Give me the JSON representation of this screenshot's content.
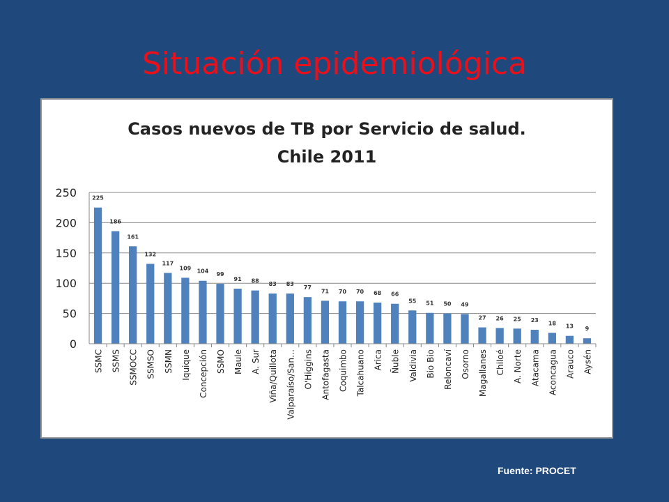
{
  "slide": {
    "title": "Situación epidemiológica",
    "source": "Fuente: PROCET",
    "background_color": "#1f497d",
    "title_color": "#e8101a"
  },
  "chart_data": {
    "type": "bar",
    "title": "Casos nuevos de TB por Servicio de salud.",
    "subtitle": "Chile 2011",
    "categories": [
      "SSMC",
      "SSMS",
      "SSMOCC",
      "SSMSO",
      "SSMN",
      "Iquique",
      "Concepción",
      "SSMO",
      "Maule",
      "A. Sur",
      "Viña/Quillota",
      "Valparaíso/San…",
      "O'Higgins",
      "Antofagasta",
      "Coquimbo",
      "Talcahuano",
      "Arica",
      "Ñuble",
      "Valdivia",
      "Bio Bio",
      "Reloncaví",
      "Osorno",
      "Magallanes",
      "Chiloé",
      "A. Norte",
      "Atacama",
      "Aconcagua",
      "Arauco",
      "Aysén"
    ],
    "values": [
      225,
      186,
      161,
      132,
      117,
      109,
      104,
      99,
      91,
      88,
      83,
      83,
      77,
      71,
      70,
      70,
      68,
      66,
      55,
      51,
      50,
      49,
      27,
      26,
      25,
      23,
      18,
      13,
      9
    ],
    "ylim": [
      0,
      250
    ],
    "yticks": [
      0,
      50,
      100,
      150,
      200,
      250
    ],
    "grid": true,
    "bar_color": "#4f81bd",
    "data_labels": true
  }
}
